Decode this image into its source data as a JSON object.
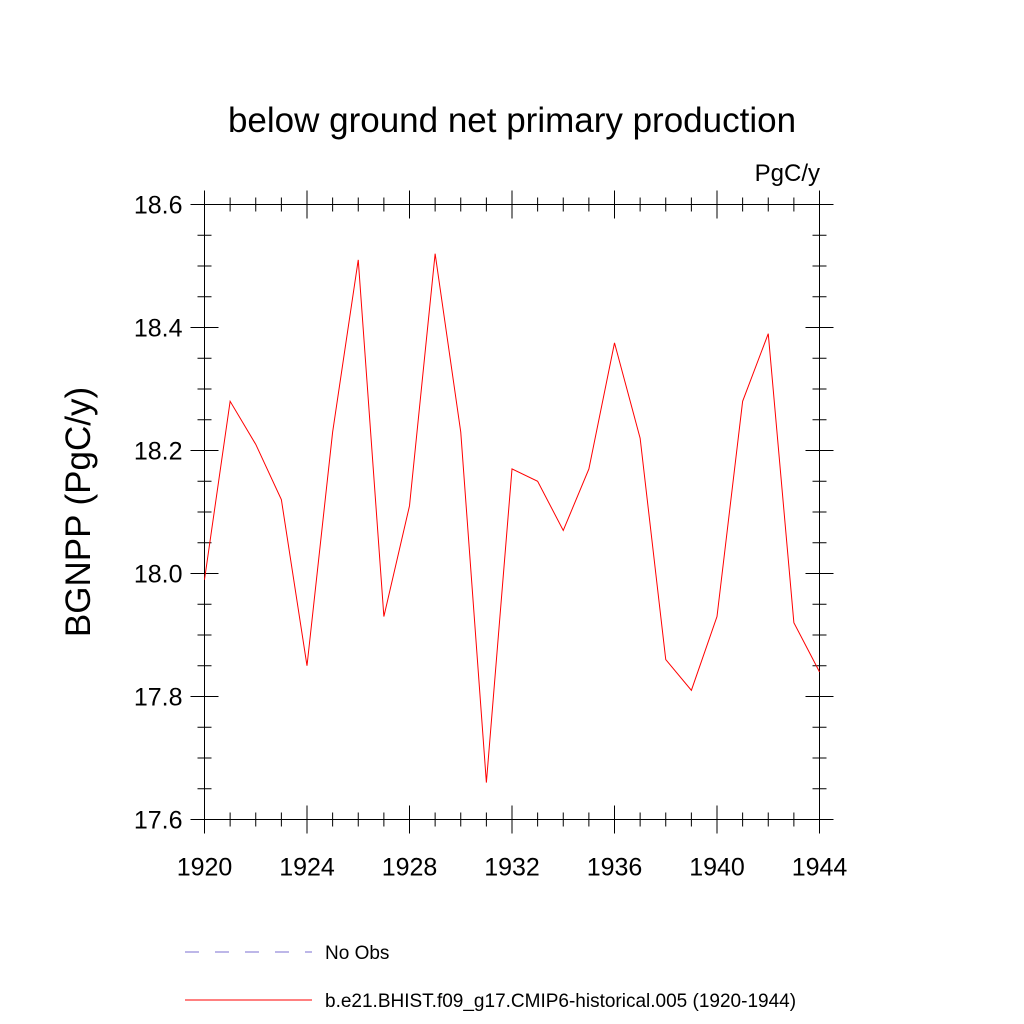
{
  "chart_data": {
    "type": "line",
    "title": "below ground net primary production",
    "units": "PgC/y",
    "xlabel": "",
    "ylabel": "BGNPP  (PgC/y)",
    "xlim": [
      1920,
      1944
    ],
    "ylim": [
      17.6,
      18.6
    ],
    "x_ticks": [
      "1920",
      "1924",
      "1928",
      "1932",
      "1936",
      "1940",
      "1944"
    ],
    "y_ticks": [
      "17.6",
      "17.8",
      "18.0",
      "18.2",
      "18.4",
      "18.6"
    ],
    "grid": false,
    "legend_position": "bottom",
    "series": [
      {
        "name": "b.e21.BHIST.f09_g17.CMIP6-historical.005 (1920-1944)",
        "color": "#ff0000",
        "dash": "solid",
        "x": [
          1920,
          1921,
          1922,
          1923,
          1924,
          1925,
          1926,
          1927,
          1928,
          1929,
          1930,
          1931,
          1932,
          1933,
          1934,
          1935,
          1936,
          1937,
          1938,
          1939,
          1940,
          1941,
          1942,
          1943,
          1944
        ],
        "values": [
          17.99,
          18.28,
          18.21,
          18.12,
          17.85,
          18.23,
          18.51,
          17.93,
          18.11,
          18.52,
          18.23,
          17.66,
          18.17,
          18.15,
          18.07,
          18.17,
          18.375,
          18.22,
          17.86,
          17.81,
          17.93,
          18.28,
          18.39,
          17.92,
          17.84
        ]
      }
    ],
    "legend": [
      {
        "label": "No Obs",
        "color": "#7b6fd0",
        "dash": "dashed"
      },
      {
        "label": "b.e21.BHIST.f09_g17.CMIP6-historical.005 (1920-1944)",
        "color": "#ff0000",
        "dash": "solid"
      }
    ]
  }
}
